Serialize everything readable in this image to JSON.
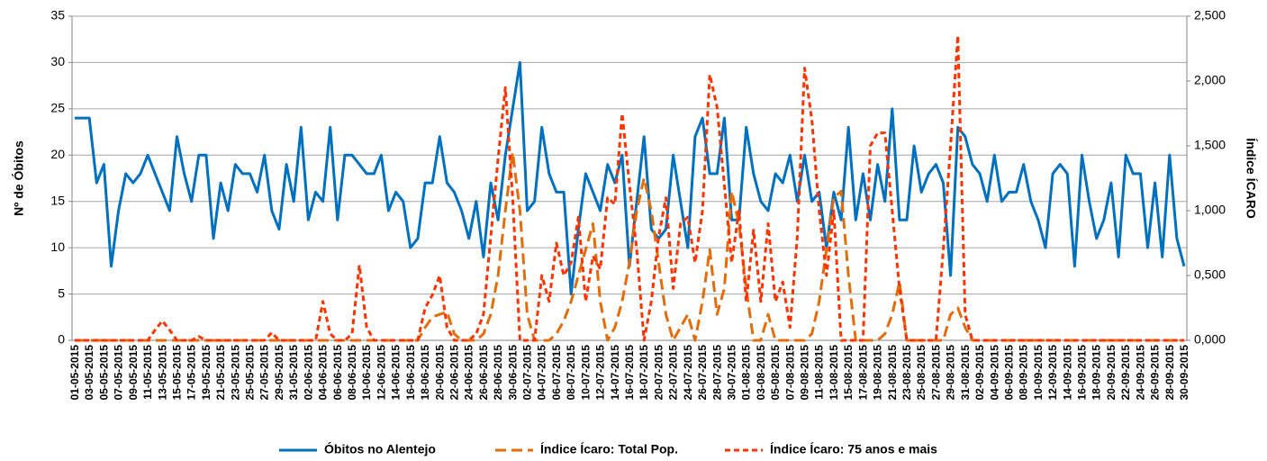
{
  "chart_data": {
    "type": "line",
    "y_label": "Nº de Óbitos",
    "y2_label": "Índice ÍCARO",
    "categories": [
      "01-05-2015",
      null,
      "03-05-2015",
      null,
      "05-05-2015",
      null,
      "07-05-2015",
      null,
      "09-05-2015",
      null,
      "11-05-2015",
      null,
      "13-05-2015",
      null,
      "15-05-2015",
      null,
      "17-05-2015",
      null,
      "19-05-2015",
      null,
      "21-05-2015",
      null,
      "23-05-2015",
      null,
      "25-05-2015",
      null,
      "27-05-2015",
      null,
      "29-05-2015",
      null,
      "31-05-2015",
      null,
      "02-06-2015",
      null,
      "04-06-2015",
      null,
      "06-06-2015",
      null,
      "08-06-2015",
      null,
      "10-06-2015",
      null,
      "12-06-2015",
      null,
      "14-06-2015",
      null,
      "16-06-2015",
      null,
      "18-06-2015",
      null,
      "20-06-2015",
      null,
      "22-06-2015",
      null,
      "24-06-2015",
      null,
      "26-06-2015",
      null,
      "28-06-2015",
      null,
      "30-06-2015",
      null,
      "02-07-2015",
      null,
      "04-07-2015",
      null,
      "06-07-2015",
      null,
      "08-07-2015",
      null,
      "10-07-2015",
      null,
      "12-07-2015",
      null,
      "14-07-2015",
      null,
      "16-07-2015",
      null,
      "18-07-2015",
      null,
      "20-07-2015",
      null,
      "22-07-2015",
      null,
      "24-07-2015",
      null,
      "26-07-2015",
      null,
      "28-07-2015",
      null,
      "30-07-2015",
      null,
      "01-08-2015",
      null,
      "03-08-2015",
      null,
      "05-08-2015",
      null,
      "07-08-2015",
      null,
      "09-08-2015",
      null,
      "11-08-2015",
      null,
      "13-08-2015",
      null,
      "15-08-2015",
      null,
      "17-08-2015",
      null,
      "19-08-2015",
      null,
      "21-08-2015",
      null,
      "23-08-2015",
      null,
      "25-08-2015",
      null,
      "27-08-2015",
      null,
      "29-08-2015",
      null,
      "31-08-2015",
      null,
      "02-09-2015",
      null,
      "04-09-2015",
      null,
      "06-09-2015",
      null,
      "08-09-2015",
      null,
      "10-09-2015",
      null,
      "12-09-2015",
      null,
      "14-09-2015",
      null,
      "16-09-2015",
      null,
      "18-09-2015",
      null,
      "20-09-2015",
      null,
      "22-09-2015",
      null,
      "24-09-2015",
      null,
      "26-09-2015",
      null,
      "28-09-2015",
      null,
      "30-09-2015"
    ],
    "series": [
      {
        "name": "Óbitos no Alentejo",
        "color": "#0070c0",
        "dash": "solid",
        "values": [
          24,
          24,
          24,
          17,
          19,
          8,
          14,
          18,
          17,
          18,
          20,
          18,
          16,
          14,
          22,
          18,
          15,
          20,
          20,
          11,
          17,
          14,
          19,
          18,
          18,
          16,
          20,
          14,
          12,
          19,
          15,
          23,
          13,
          16,
          15,
          23,
          13,
          20,
          20,
          19,
          18,
          18,
          20,
          14,
          16,
          15,
          10,
          11,
          17,
          17,
          22,
          17,
          16,
          14,
          11,
          15,
          9,
          17,
          13,
          20,
          25,
          30,
          14,
          15,
          23,
          18,
          16,
          16,
          5,
          12,
          18,
          16,
          14,
          19,
          17,
          20,
          8,
          15,
          22,
          12,
          11,
          12,
          20,
          15,
          10,
          22,
          24,
          18,
          18,
          24,
          13,
          13,
          23,
          18,
          15,
          14,
          18,
          17,
          20,
          15,
          20,
          15,
          16,
          10,
          16,
          13,
          23,
          13,
          18,
          13,
          19,
          15,
          25,
          13,
          13,
          21,
          16,
          18,
          19,
          17,
          7,
          23,
          22,
          19,
          18,
          15,
          20,
          15,
          16,
          16,
          19,
          15,
          13,
          10,
          18,
          19,
          18,
          8,
          20,
          15,
          11,
          13,
          17,
          9,
          20,
          18,
          18,
          10,
          17,
          9,
          20,
          11,
          8
        ]
      },
      {
        "name": "Índice Ícaro: Total Pop.",
        "color": "#e46c0a",
        "dash": "long",
        "axis": "y2",
        "values": [
          0,
          0,
          0,
          0,
          0,
          0,
          0,
          0,
          0,
          0,
          0,
          0,
          0,
          0,
          0,
          0,
          0,
          0,
          0,
          0,
          0,
          0,
          0,
          0,
          0,
          0,
          0,
          0,
          0,
          0,
          0,
          0,
          0,
          0,
          0,
          0,
          0,
          0,
          0,
          0,
          0,
          0,
          0,
          0,
          0,
          0,
          0,
          0,
          100,
          180,
          200,
          220,
          50,
          0,
          0,
          0,
          50,
          200,
          500,
          1000,
          1450,
          1000,
          200,
          0,
          0,
          0,
          50,
          150,
          300,
          500,
          700,
          900,
          300,
          0,
          100,
          300,
          600,
          1000,
          1250,
          1000,
          600,
          200,
          0,
          100,
          200,
          0,
          300,
          700,
          200,
          400,
          1150,
          900,
          400,
          0,
          0,
          200,
          0,
          0,
          0,
          0,
          0,
          50,
          300,
          700,
          1100,
          1150,
          500,
          0,
          0,
          0,
          0,
          50,
          200,
          450,
          0,
          0,
          0,
          0,
          0,
          0,
          200,
          250,
          100,
          0,
          0,
          0,
          0,
          0,
          0,
          0,
          0,
          0,
          0,
          0,
          0,
          0,
          0,
          0,
          0,
          0,
          0,
          0,
          0,
          0,
          0,
          0,
          0,
          0,
          0,
          0,
          0,
          0,
          0
        ]
      },
      {
        "name": "Índice Ícaro: 75 anos e mais",
        "color": "#ff3300",
        "dash": "short",
        "axis": "y2",
        "values": [
          0,
          0,
          0,
          0,
          0,
          0,
          0,
          0,
          0,
          0,
          0,
          80,
          150,
          80,
          0,
          0,
          0,
          30,
          0,
          0,
          0,
          0,
          0,
          0,
          0,
          0,
          0,
          60,
          0,
          0,
          0,
          0,
          0,
          0,
          300,
          50,
          0,
          0,
          50,
          580,
          100,
          0,
          0,
          0,
          0,
          0,
          0,
          0,
          250,
          350,
          500,
          100,
          0,
          0,
          0,
          50,
          200,
          800,
          1400,
          1950,
          1100,
          0,
          0,
          0,
          500,
          300,
          750,
          500,
          600,
          950,
          300,
          650,
          550,
          1100,
          1050,
          1750,
          1200,
          700,
          0,
          300,
          800,
          1100,
          400,
          900,
          950,
          600,
          1000,
          2050,
          1800,
          1200,
          600,
          1000,
          300,
          850,
          300,
          900,
          300,
          450,
          100,
          800,
          2100,
          1700,
          1000,
          500,
          1000,
          0,
          0,
          0,
          0,
          1500,
          1600,
          1600,
          1000,
          400,
          0,
          0,
          0,
          0,
          0,
          700,
          1500,
          2350,
          200,
          0,
          0,
          0,
          0,
          0,
          0,
          0,
          0,
          0,
          0,
          0,
          0,
          0,
          0,
          0,
          0,
          0,
          0,
          0,
          0,
          0,
          0,
          0,
          0,
          0,
          0,
          0,
          0,
          0,
          0
        ]
      }
    ],
    "ylim": [
      0,
      35
    ],
    "yticks": [
      0,
      5,
      10,
      15,
      20,
      25,
      30,
      35
    ],
    "y2lim": [
      0,
      2500
    ],
    "y2ticks": [
      {
        "value": 0,
        "label": "0,000"
      },
      {
        "value": 500,
        "label": "0,500"
      },
      {
        "value": 1000,
        "label": "1,000"
      },
      {
        "value": 1500,
        "label": "1,500"
      },
      {
        "value": 2000,
        "label": "2,000"
      },
      {
        "value": 2500,
        "label": "2,500"
      }
    ],
    "grid": true,
    "legend": "bottom"
  }
}
